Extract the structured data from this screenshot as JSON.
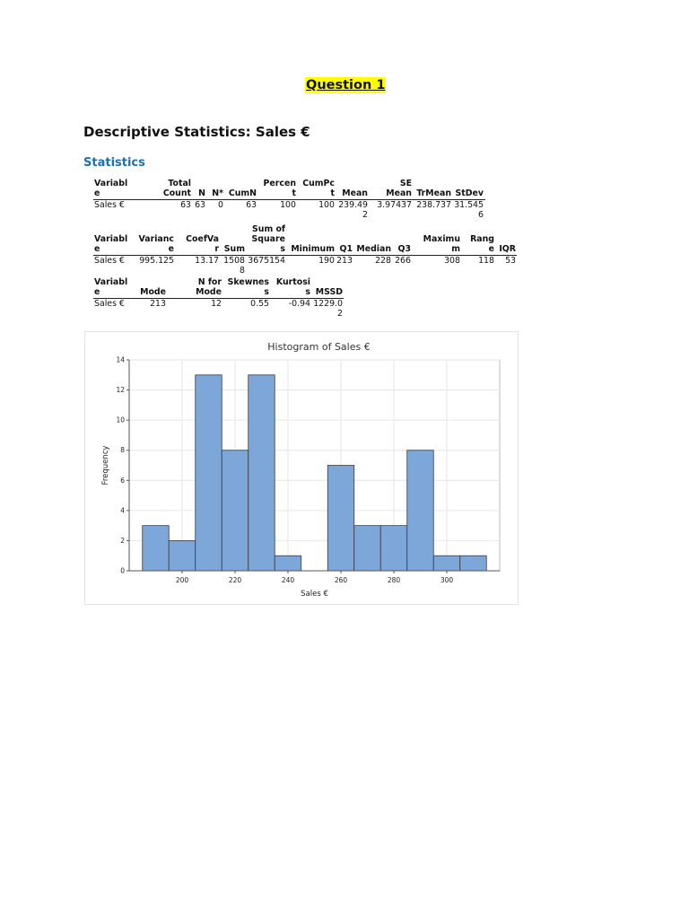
{
  "question_title": "Question 1",
  "doc_title": "Descriptive Statistics: Sales €",
  "section_title": "Statistics",
  "table1": {
    "headers": [
      [
        "Variabl",
        "e"
      ],
      [
        "Total",
        "Count"
      ],
      [
        "N"
      ],
      [
        "N*"
      ],
      [
        "CumN"
      ],
      [
        "Percen",
        "t"
      ],
      [
        "CumPc",
        "t"
      ],
      [
        "Mean"
      ],
      [
        "SE",
        "Mean"
      ],
      [
        "TrMean"
      ],
      [
        "StDev"
      ]
    ],
    "row": [
      [
        "Sales €"
      ],
      [
        "63"
      ],
      [
        "63"
      ],
      [
        "0"
      ],
      [
        "63"
      ],
      [
        "100"
      ],
      [
        "100"
      ],
      [
        "239.49",
        "2"
      ],
      [
        "3.97437"
      ],
      [
        "238.737"
      ],
      [
        "31.545",
        "6"
      ]
    ]
  },
  "table2": {
    "headers": [
      [
        "Variabl",
        "e"
      ],
      [
        "Varianc",
        "e"
      ],
      [
        "CoefVa",
        "r"
      ],
      [
        "Sum"
      ],
      [
        "Sum of",
        "Square",
        "s"
      ],
      [
        "Minimum"
      ],
      [
        "Q1"
      ],
      [
        "Median"
      ],
      [
        "Q3"
      ],
      [
        "Maximu",
        "m"
      ],
      [
        "Rang",
        "e"
      ],
      [
        "IQR"
      ]
    ],
    "row": [
      [
        "Sales €"
      ],
      [
        "995.125"
      ],
      [
        "13.17"
      ],
      [
        "1508",
        "8"
      ],
      [
        "3675154"
      ],
      [
        "190"
      ],
      [
        "213"
      ],
      [
        "228"
      ],
      [
        "266"
      ],
      [
        "308"
      ],
      [
        "118"
      ],
      [
        "53"
      ]
    ]
  },
  "table3": {
    "headers": [
      [
        "Variabl",
        "e"
      ],
      [
        "Mode"
      ],
      [
        "N for",
        "Mode"
      ],
      [
        "Skewnes",
        "s"
      ],
      [
        "Kurtosi",
        "s"
      ],
      [
        "MSSD"
      ]
    ],
    "row": [
      [
        "Sales €"
      ],
      [
        "213"
      ],
      [
        "12"
      ],
      [
        "0.55"
      ],
      [
        "-0.94"
      ],
      [
        "1229.0",
        "2"
      ]
    ]
  },
  "chart_data": {
    "type": "bar",
    "title": "Histogram of Sales €",
    "xlabel": "Sales €",
    "ylabel": "Frequency",
    "bin_width": 10,
    "bins": [
      {
        "start": 185,
        "end": 195,
        "count": 3
      },
      {
        "start": 195,
        "end": 205,
        "count": 2
      },
      {
        "start": 205,
        "end": 215,
        "count": 13
      },
      {
        "start": 215,
        "end": 225,
        "count": 8
      },
      {
        "start": 225,
        "end": 235,
        "count": 13
      },
      {
        "start": 235,
        "end": 245,
        "count": 1
      },
      {
        "start": 245,
        "end": 255,
        "count": 0
      },
      {
        "start": 255,
        "end": 265,
        "count": 7
      },
      {
        "start": 265,
        "end": 275,
        "count": 3
      },
      {
        "start": 275,
        "end": 285,
        "count": 3
      },
      {
        "start": 285,
        "end": 295,
        "count": 8
      },
      {
        "start": 295,
        "end": 305,
        "count": 1
      },
      {
        "start": 305,
        "end": 315,
        "count": 1
      }
    ],
    "xlim": [
      180,
      320
    ],
    "ylim": [
      0,
      14
    ],
    "x_ticks": [
      200,
      220,
      240,
      260,
      280,
      300
    ],
    "y_ticks": [
      0,
      2,
      4,
      6,
      8,
      10,
      12,
      14
    ],
    "grid": true,
    "bar_color": "#7da7d9",
    "bar_edge_color": "#3a3a3a"
  }
}
